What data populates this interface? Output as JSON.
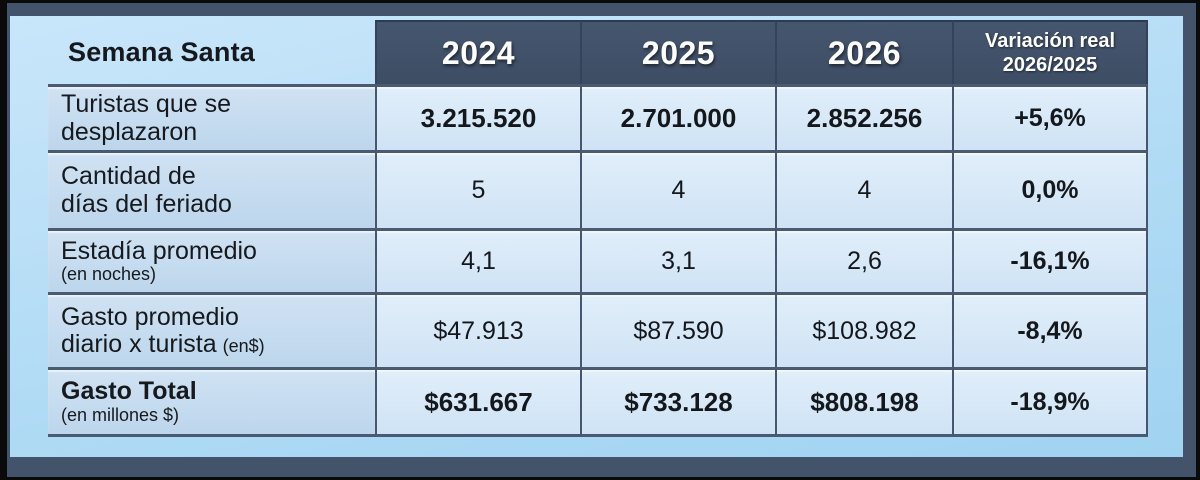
{
  "title": "Semana Santa",
  "table": {
    "corner_label": "Semana Santa",
    "year_columns": [
      "2024",
      "2025",
      "2026"
    ],
    "variation_header": {
      "line1": "Variación real",
      "line2": "2026/2025"
    },
    "rows": [
      {
        "line1": "Turistas que se",
        "line2": "desplazaron",
        "line2_small": "",
        "values": [
          "3.215.520",
          "2.701.000",
          "2.852.256"
        ],
        "variation": "+5,6%"
      },
      {
        "line1": "Cantidad de",
        "line2": "días del feriado",
        "line2_small": "",
        "values": [
          "5",
          "4",
          "4"
        ],
        "variation": "0,0%"
      },
      {
        "line1": "Estadía promedio",
        "line2": "",
        "line2_small": "(en noches)",
        "values": [
          "4,1",
          "3,1",
          "2,6"
        ],
        "variation": "-16,1%"
      },
      {
        "line1": "Gasto promedio",
        "line2": "diario x turista",
        "line2_small": "(en$)",
        "values": [
          "$47.913",
          "$87.590",
          "$108.982"
        ],
        "variation": "-8,4%"
      },
      {
        "line1": "Gasto Total",
        "line2": "",
        "line2_small": "(en millones $)",
        "values": [
          "$631.667",
          "$733.128",
          "$808.198"
        ],
        "variation": "-18,9%"
      }
    ]
  },
  "colors": {
    "frame": "#43536A",
    "header_bg": "#3F4F66",
    "panel_light_blue": "#B5DDF6",
    "label_cell": "#C6DCEF",
    "data_cell": "#DCEAF8",
    "separator": "#4A5A72",
    "text_dark": "#15181C",
    "header_text": "#FFFFFF"
  },
  "chart_data": {
    "type": "table",
    "title": "Semana Santa",
    "column_headers": [
      "Semana Santa",
      "2024",
      "2025",
      "2026",
      "Variación real 2026/2025"
    ],
    "rows": [
      [
        "Turistas que se desplazaron",
        "3.215.520",
        "2.701.000",
        "2.852.256",
        "+5,6%"
      ],
      [
        "Cantidad de días del feriado",
        "5",
        "4",
        "4",
        "0,0%"
      ],
      [
        "Estadía promedio (en noches)",
        "4,1",
        "3,1",
        "2,6",
        "-16,1%"
      ],
      [
        "Gasto promedio diario x turista (en$)",
        "$47.913",
        "$87.590",
        "$108.982",
        "-8,4%"
      ],
      [
        "Gasto Total (en millones $)",
        "$631.667",
        "$733.128",
        "$808.198",
        "-18,9%"
      ]
    ]
  }
}
